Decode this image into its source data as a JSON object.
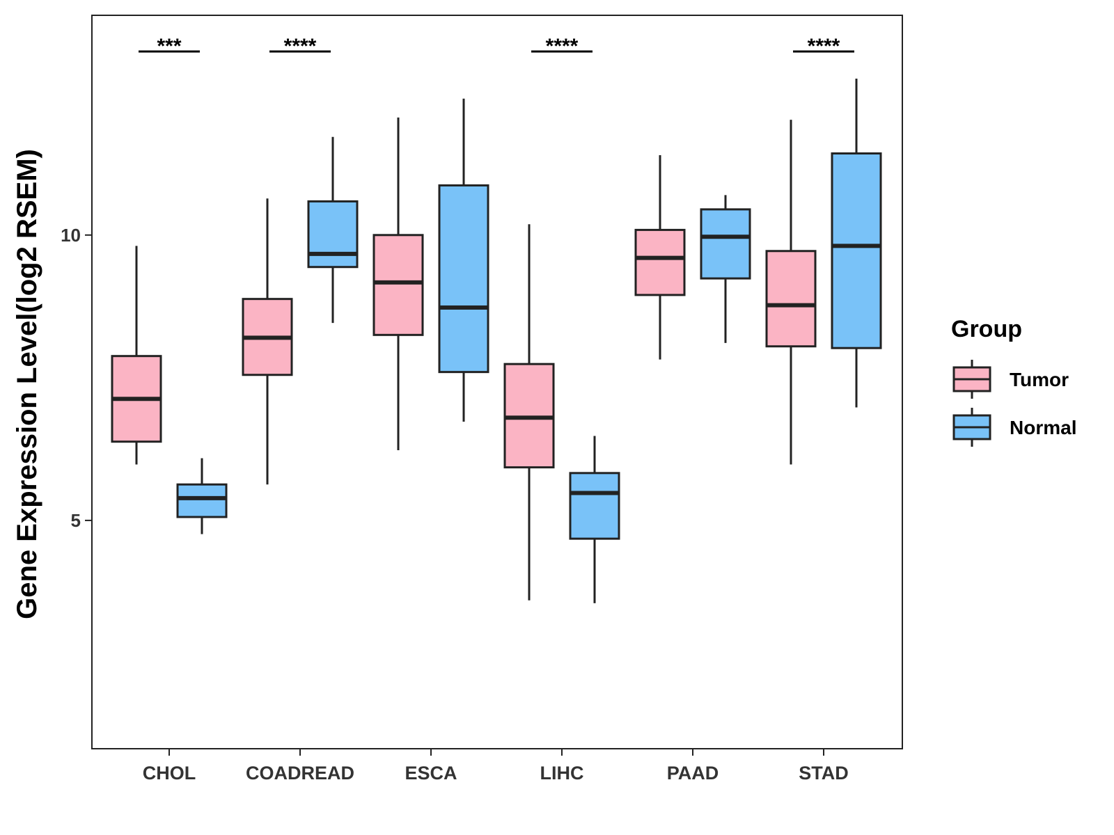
{
  "chart_data": {
    "type": "boxplot",
    "title": "",
    "xlabel": "",
    "ylabel": "Gene Expression Level(log2 RSEM)",
    "ylim": [
      1,
      13.85
    ],
    "yticks": [
      5,
      10
    ],
    "ytick_labels": [
      "5",
      "10"
    ],
    "categories": [
      "CHOL",
      "COADREAD",
      "ESCA",
      "LIHC",
      "PAAD",
      "STAD"
    ],
    "legend": {
      "title": "Group",
      "position": "right",
      "entries": [
        "Tumor",
        "Normal"
      ]
    },
    "colors": {
      "Tumor": "#FBB4C4",
      "Normal": "#79C2F8",
      "stroke": "#222222"
    },
    "series": [
      {
        "name": "Tumor",
        "boxes": [
          {
            "min": 5.98,
            "q1": 6.38,
            "median": 7.13,
            "q3": 7.88,
            "max": 9.81
          },
          {
            "min": 5.63,
            "q1": 7.55,
            "median": 8.2,
            "q3": 8.88,
            "max": 10.64
          },
          {
            "min": 6.23,
            "q1": 8.25,
            "median": 9.17,
            "q3": 10.0,
            "max": 12.06
          },
          {
            "min": 3.6,
            "q1": 5.93,
            "median": 6.8,
            "q3": 7.74,
            "max": 10.19
          },
          {
            "min": 7.82,
            "q1": 8.95,
            "median": 9.6,
            "q3": 10.09,
            "max": 11.4
          },
          {
            "min": 5.98,
            "q1": 8.05,
            "median": 8.77,
            "q3": 9.72,
            "max": 12.02
          }
        ]
      },
      {
        "name": "Normal",
        "boxes": [
          {
            "min": 4.76,
            "q1": 5.06,
            "median": 5.39,
            "q3": 5.63,
            "max": 6.09
          },
          {
            "min": 8.46,
            "q1": 9.44,
            "median": 9.67,
            "q3": 10.59,
            "max": 11.72
          },
          {
            "min": 6.73,
            "q1": 7.6,
            "median": 8.73,
            "q3": 10.87,
            "max": 12.39
          },
          {
            "min": 3.55,
            "q1": 4.68,
            "median": 5.48,
            "q3": 5.83,
            "max": 6.48
          },
          {
            "min": 8.11,
            "q1": 9.24,
            "median": 9.97,
            "q3": 10.45,
            "max": 10.7
          },
          {
            "min": 6.98,
            "q1": 8.02,
            "median": 9.81,
            "q3": 11.43,
            "max": 12.74
          }
        ]
      }
    ],
    "significance": [
      {
        "category": "CHOL",
        "label": "***"
      },
      {
        "category": "COADREAD",
        "label": "****"
      },
      {
        "category": "LIHC",
        "label": "****"
      },
      {
        "category": "STAD",
        "label": "****"
      }
    ]
  }
}
